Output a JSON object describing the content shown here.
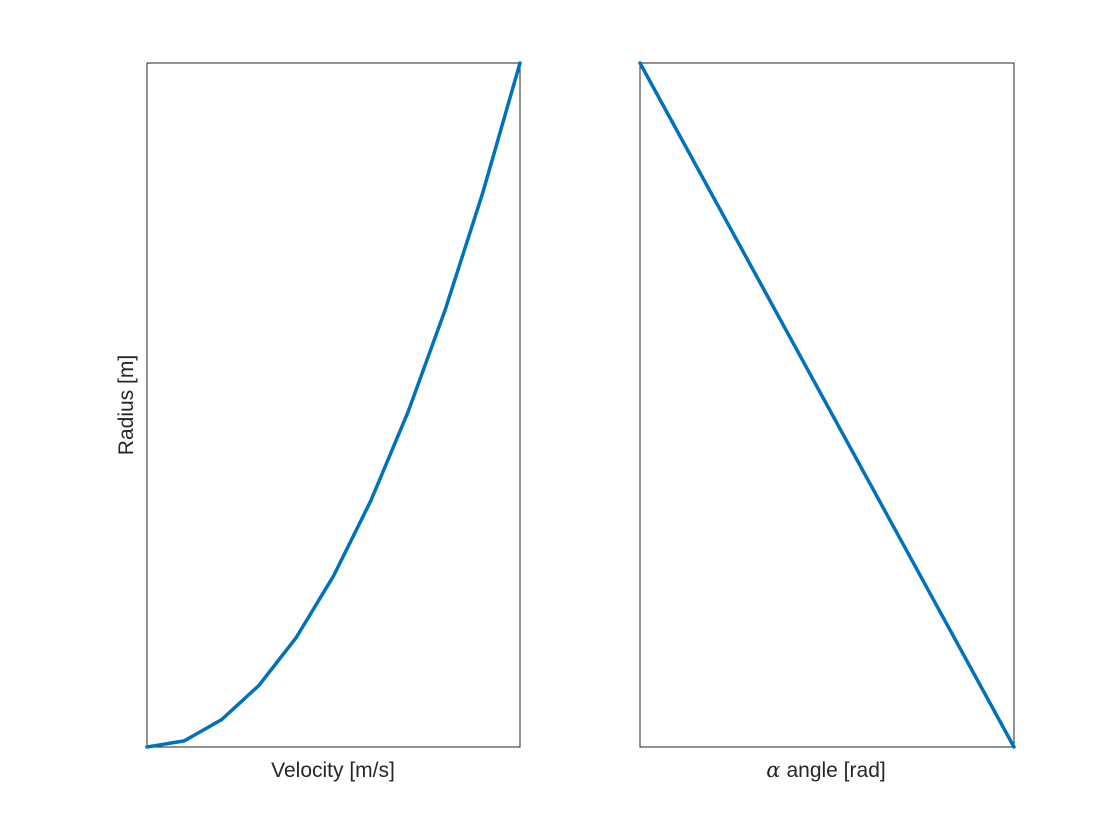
{
  "figure": {
    "background": "#ffffff",
    "line_color": "#0072bd",
    "frame_color": "#262626"
  },
  "chart_data": [
    {
      "type": "line",
      "title": "",
      "xlabel": "Velocity [m/s]",
      "ylabel": "Radius [m]",
      "xlim": [
        0,
        1
      ],
      "ylim": [
        0,
        1
      ],
      "ticks_visible": false,
      "grid": false,
      "series": [
        {
          "color": "#0072bd",
          "x": [
            0,
            0.1,
            0.2,
            0.3,
            0.4,
            0.5,
            0.6,
            0.7,
            0.8,
            0.9,
            1
          ],
          "y": [
            0,
            0.009,
            0.04,
            0.09,
            0.16,
            0.25,
            0.36,
            0.49,
            0.64,
            0.81,
            1
          ]
        }
      ]
    },
    {
      "type": "line",
      "title": "",
      "xlabel_symbol": "α",
      "xlabel": "angle [rad]",
      "ylabel": "",
      "xlim": [
        0,
        1
      ],
      "ylim": [
        0,
        1
      ],
      "ticks_visible": false,
      "grid": false,
      "series": [
        {
          "color": "#0072bd",
          "x": [
            0,
            1
          ],
          "y": [
            1,
            0
          ]
        }
      ]
    }
  ]
}
